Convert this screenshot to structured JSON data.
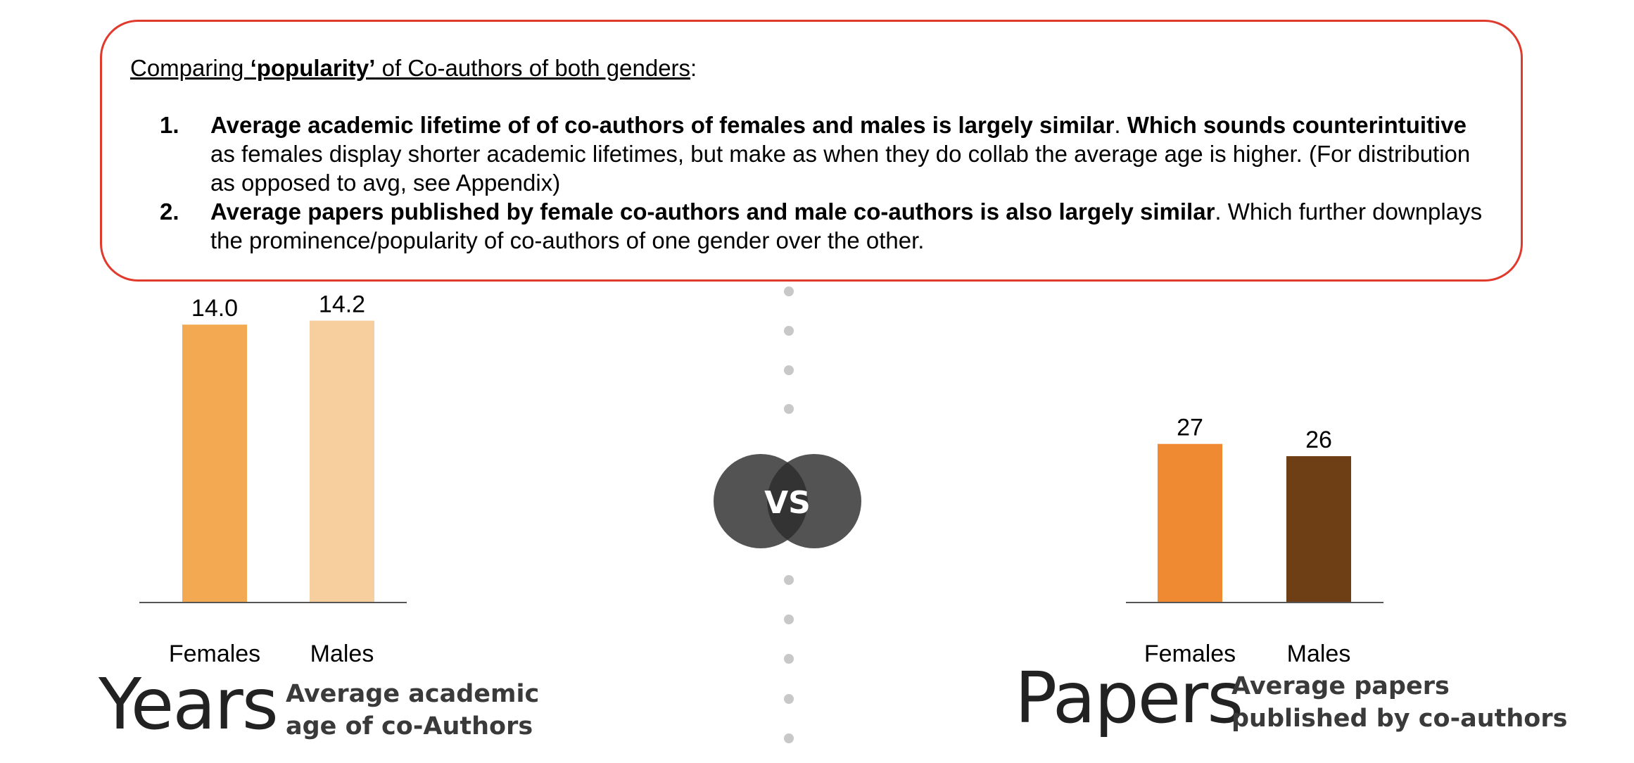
{
  "summary": {
    "heading_prefix": "Comparing ",
    "heading_bold": "‘popularity’",
    "heading_rest": " of Co-authors of both genders",
    "heading_colon": ":",
    "points": [
      {
        "number": "1.",
        "bold1": "Average academic lifetime of of co-authors of females and males is largely similar",
        "text1": ". ",
        "bold2": "Which sounds counterintuitive",
        "text2": " as females display shorter academic lifetimes, but make as when they do collab the average age is higher. (For distribution as opposed to avg, see Appendix)"
      },
      {
        "number": "2.",
        "bold1": "Average papers published by female co-authors and male co-authors is also largely similar",
        "text1": ". Which further downplays the prominence/popularity of co-authors of one gender over the other."
      }
    ]
  },
  "vs_label": "VS",
  "left_panel": {
    "big_word": "Years",
    "caption_line1": "Average academic",
    "caption_line2": "age of co-Authors"
  },
  "right_panel": {
    "big_word": "Papers",
    "caption_line1": "Average papers",
    "caption_line2": "published by co-authors"
  },
  "colors": {
    "box_border": "#e03a2c",
    "vs_circle": "#4a4a4a",
    "dots": "#c8c8c8"
  },
  "chart_data": [
    {
      "type": "bar",
      "categories": [
        "Females",
        "Males"
      ],
      "values": [
        14.0,
        14.2
      ],
      "data_labels": [
        "14.0",
        "14.2"
      ],
      "colors": [
        "#f2a952",
        "#f7cf9f"
      ],
      "ylim": [
        0,
        17.5
      ]
    },
    {
      "type": "bar",
      "categories": [
        "Females",
        "Males"
      ],
      "values": [
        27,
        26
      ],
      "data_labels": [
        "27",
        "26"
      ],
      "colors": [
        "#ef8a33",
        "#6e3f14"
      ],
      "ylim": [
        14.05,
        30.6
      ]
    }
  ]
}
